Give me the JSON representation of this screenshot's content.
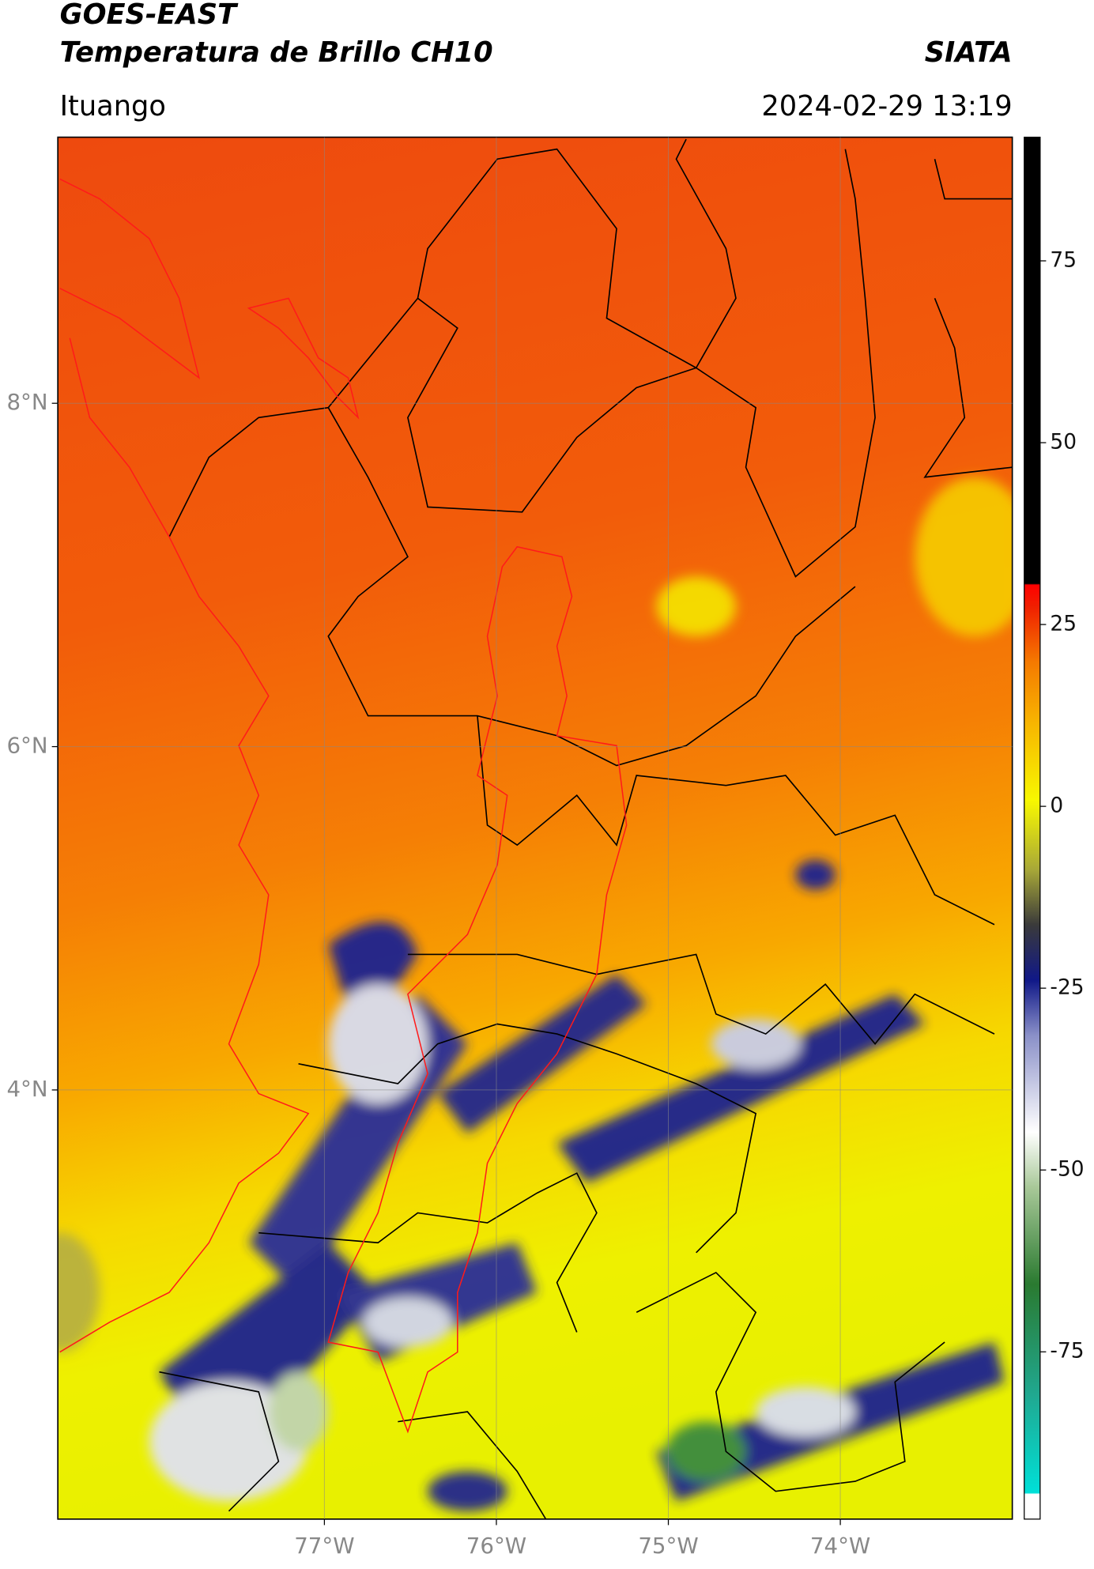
{
  "header": {
    "title_line1": "GOES-EAST",
    "title_line2": "Temperatura de Brillo CH10",
    "source": "SIATA",
    "region": "Ituango",
    "datetime": "2024-02-29 13:19"
  },
  "map": {
    "lonlim": [
      -78.55,
      -73.0
    ],
    "latlim": [
      1.5,
      9.55
    ],
    "lon_ticks": [
      {
        "value": -77,
        "label": "77°W"
      },
      {
        "value": -76,
        "label": "76°W"
      },
      {
        "value": -75,
        "label": "75°W"
      },
      {
        "value": -74,
        "label": "74°W"
      }
    ],
    "lat_ticks": [
      {
        "value": 8,
        "label": "8°N"
      },
      {
        "value": 6,
        "label": "6°N"
      },
      {
        "value": 4,
        "label": "4°N"
      }
    ],
    "grid": true
  },
  "colorbar": {
    "lim": [
      -98,
      92
    ],
    "ticks": [
      75,
      50,
      25,
      0,
      -25,
      -50,
      -75
    ]
  }
}
